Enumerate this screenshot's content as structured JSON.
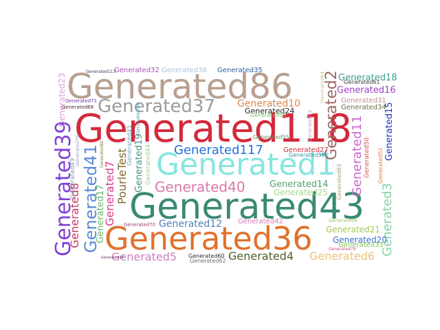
{
  "words": [
    {
      "text": "Generated118",
      "color": "#d42a3b"
    },
    {
      "text": "Generated43",
      "color": "#3a8a74"
    },
    {
      "text": "Generated86",
      "color": "#b89f8f"
    },
    {
      "text": "Generated36",
      "color": "#e0722e"
    },
    {
      "text": "Generated1",
      "color": "#87e6df"
    },
    {
      "text": "Generated37",
      "color": "#9c9c9c"
    },
    {
      "text": "Generated39",
      "color": "#7f3fd6"
    },
    {
      "text": "Generated40",
      "color": "#d87aaa"
    },
    {
      "text": "Generated117",
      "color": "#1f6fe0"
    },
    {
      "text": "Generated41",
      "color": "#5b8ad6"
    },
    {
      "text": "Generated2",
      "color": "#9c6a63"
    },
    {
      "text": "Generated11",
      "color": "#c86acb"
    },
    {
      "text": "Generated3",
      "color": "#82d4a8"
    },
    {
      "text": "Generated4",
      "color": "#4c5e2a"
    },
    {
      "text": "Generated5",
      "color": "#cd7fbf"
    },
    {
      "text": "Generated6",
      "color": "#edc27a"
    },
    {
      "text": "Generated7",
      "color": "#e03a8a"
    },
    {
      "text": "Generated8",
      "color": "#c43a63"
    },
    {
      "text": "Generated10",
      "color": "#d9884c"
    },
    {
      "text": "Generated12",
      "color": "#4f82b8"
    },
    {
      "text": "Generated14",
      "color": "#4ea36c"
    },
    {
      "text": "Generated15",
      "color": "#1f2fc4"
    },
    {
      "text": "Generated16",
      "color": "#9b3fc4"
    },
    {
      "text": "Generated17",
      "color": "#68b86a"
    },
    {
      "text": "Generated18",
      "color": "#3f9e8e"
    },
    {
      "text": "Generated19",
      "color": "#4c8f88"
    },
    {
      "text": "Generated20",
      "color": "#3b6fd1"
    },
    {
      "text": "Generated21",
      "color": "#a5c94f"
    },
    {
      "text": "Generated23",
      "color": "#e0a0d9"
    },
    {
      "text": "Generated24",
      "color": "#222222"
    },
    {
      "text": "Generated25",
      "color": "#a3d98b"
    },
    {
      "text": "Generated27",
      "color": "#c9303a"
    },
    {
      "text": "Generated31",
      "color": "#c48f8f"
    },
    {
      "text": "Generated32",
      "color": "#a64fb5"
    },
    {
      "text": "Generated33",
      "color": "#7fc44a"
    },
    {
      "text": "Generated34",
      "color": "#6f6f4a"
    },
    {
      "text": "Generated35",
      "color": "#2a5e9e"
    },
    {
      "text": "Generated38",
      "color": "#a9c4e0"
    },
    {
      "text": "Generated42",
      "color": "#d978b8"
    },
    {
      "text": "Generated44",
      "color": "#a3c99b"
    },
    {
      "text": "Generated45",
      "color": "#6fa8c4"
    },
    {
      "text": "Generated49",
      "color": "#7f9ea8"
    },
    {
      "text": "Generated50",
      "color": "#d9504c"
    },
    {
      "text": "Generated51",
      "color": "#e07a3a"
    },
    {
      "text": "Generated55",
      "color": "#6f8f6f"
    },
    {
      "text": "Generated58",
      "color": "#7fbf6f"
    },
    {
      "text": "Generated59",
      "color": "#3f8fa8"
    },
    {
      "text": "Generated60",
      "color": "#2a2a2a"
    },
    {
      "text": "Generated61",
      "color": "#3f3f3f"
    },
    {
      "text": "Generated62",
      "color": "#6f6f6f"
    },
    {
      "text": "Generated63",
      "color": "#a89f6f"
    },
    {
      "text": "Generated64",
      "color": "#c4c48f"
    },
    {
      "text": "Generated68",
      "color": "#4f2a2a"
    },
    {
      "text": "Generated70",
      "color": "#9f3f6f"
    },
    {
      "text": "Generated71",
      "color": "#6f2f9f"
    },
    {
      "text": "Generated72",
      "color": "#c8a0d0"
    },
    {
      "text": "Generated76",
      "color": "#a0a0d0"
    },
    {
      "text": "Generated79",
      "color": "#d04f7f"
    },
    {
      "text": "Generated80",
      "color": "#7a7a3a"
    },
    {
      "text": "Generated113",
      "color": "#3a3a5e"
    },
    {
      "text": "Generated14",
      "color": "#3fa8c4"
    },
    {
      "text": "Generated9",
      "color": "#9fc46f"
    },
    {
      "text": "Generated14",
      "color": "#5e2a5e"
    },
    {
      "text": "PourleTest",
      "color": "#7a6a2a"
    }
  ]
}
